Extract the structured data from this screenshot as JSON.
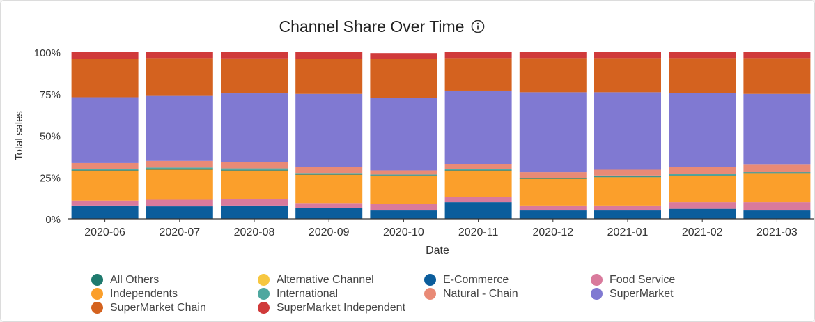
{
  "chart_data": {
    "type": "bar",
    "stacked": true,
    "normalized": true,
    "title": "Channel Share Over Time",
    "xlabel": "Date",
    "ylabel": "Total sales",
    "ylim": [
      0,
      100
    ],
    "yticks": [
      "0%",
      "25%",
      "50%",
      "75%",
      "100%"
    ],
    "grid": false,
    "legend_position": "bottom",
    "categories": [
      "2020-06",
      "2020-07",
      "2020-08",
      "2020-09",
      "2020-10",
      "2020-11",
      "2020-12",
      "2021-01",
      "2021-02",
      "2021-03"
    ],
    "series": [
      {
        "name": "E-Commerce",
        "color": "#0b5d9c",
        "values": [
          8,
          7.5,
          8,
          6.5,
          5,
          10,
          5,
          5,
          6,
          5
        ]
      },
      {
        "name": "Food Service",
        "color": "#d97a9c",
        "values": [
          3,
          4,
          4,
          3,
          4,
          3,
          3,
          3,
          4,
          5
        ]
      },
      {
        "name": "Independents",
        "color": "#fb9f2b",
        "values": [
          18,
          18,
          17,
          17,
          17,
          16,
          16,
          17,
          16,
          17.5
        ]
      },
      {
        "name": "All Others",
        "color": "#1f7a6e",
        "values": [
          0.3,
          0.3,
          0.3,
          0.3,
          0.3,
          0.3,
          0.3,
          0.3,
          0.3,
          0.3
        ]
      },
      {
        "name": "International",
        "color": "#4fa8a0",
        "values": [
          0.7,
          1,
          1,
          0.7,
          0.3,
          0.7,
          0.2,
          0.7,
          0.7,
          0.2
        ]
      },
      {
        "name": "Alternative Channel",
        "color": "#f7c740",
        "values": [
          0,
          0,
          0,
          0,
          0,
          0,
          0,
          0,
          0,
          0
        ]
      },
      {
        "name": "Natural - Chain",
        "color": "#e98a76",
        "values": [
          3.5,
          4,
          4,
          3.5,
          2.5,
          3,
          3.5,
          3.5,
          4,
          4.5
        ]
      },
      {
        "name": "SuperMarket",
        "color": "#8079d2",
        "values": [
          39.5,
          39,
          41,
          44,
          43.5,
          44,
          48,
          46.5,
          44.5,
          42.5
        ]
      },
      {
        "name": "SuperMarket Chain",
        "color": "#d4621f",
        "values": [
          23,
          22.7,
          21,
          21,
          23.5,
          19.5,
          20.5,
          20.5,
          21,
          21.5
        ]
      },
      {
        "name": "SuperMarket Independent",
        "color": "#d03a3a",
        "values": [
          4,
          3.5,
          3.7,
          4,
          3.4,
          3.5,
          3.5,
          3.5,
          3.5,
          3.5
        ]
      }
    ]
  },
  "legend_order": [
    "All Others",
    "Alternative Channel",
    "E-Commerce",
    "Food Service",
    "Independents",
    "International",
    "Natural - Chain",
    "SuperMarket",
    "SuperMarket Chain",
    "SuperMarket Independent"
  ],
  "info_icon": "info-circle-icon"
}
